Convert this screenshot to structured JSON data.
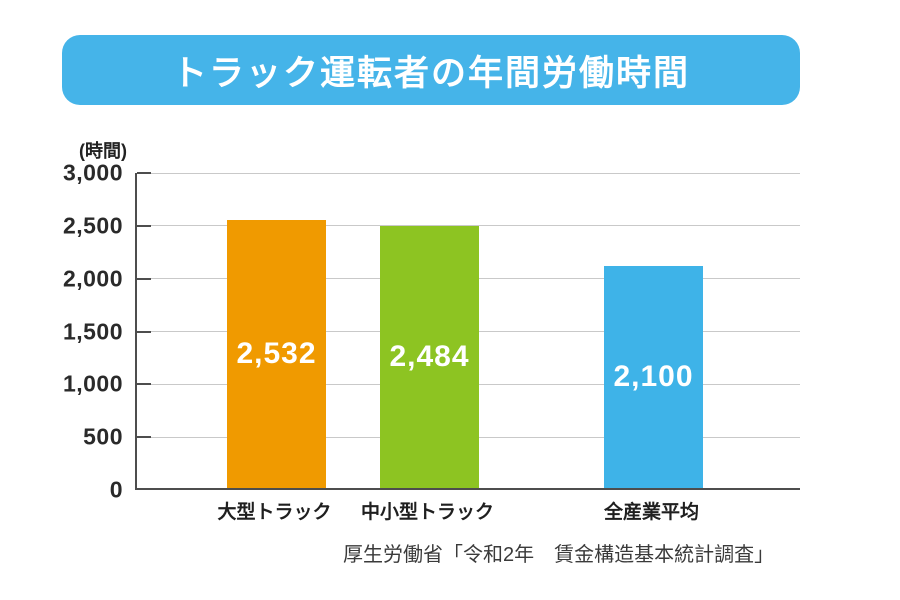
{
  "header": {
    "title": "トラック運転者の年間労働時間",
    "banner_color": "#45B4E9"
  },
  "chart_data": {
    "type": "bar",
    "title": "トラック運転者の年間労働時間",
    "xlabel": "",
    "ylabel": "(時間)",
    "ylim": [
      0,
      3000
    ],
    "ytick_interval": 500,
    "ytick_labels": [
      "0",
      "500",
      "1,000",
      "1,500",
      "2,000",
      "2,500",
      "3,000"
    ],
    "grid": true,
    "legend": "none",
    "categories": [
      "大型トラック",
      "中小型トラック",
      "全産業平均"
    ],
    "values": [
      2532,
      2484,
      2100
    ],
    "value_labels": [
      "2,532",
      "2,484",
      "2,100"
    ],
    "bar_colors": [
      "#F09A00",
      "#8DC422",
      "#3EB3E8"
    ]
  },
  "source": {
    "text": "厚生労働省「令和2年　賃金構造基本統計調査」"
  }
}
